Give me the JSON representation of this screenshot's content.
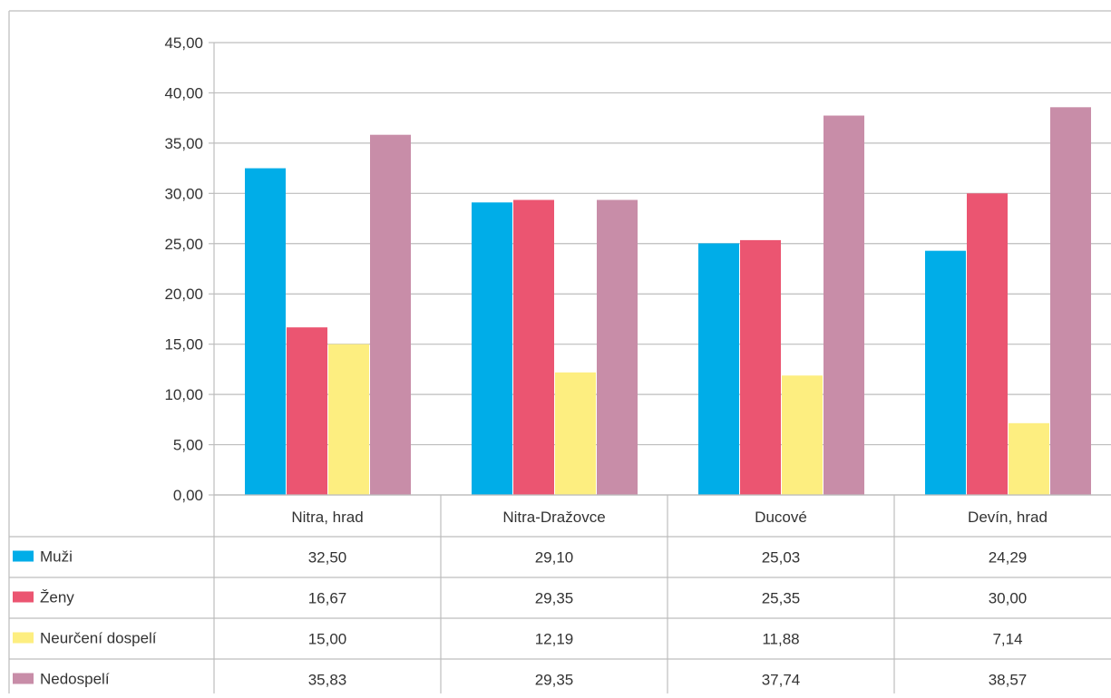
{
  "chart_data": {
    "type": "bar",
    "title": "",
    "xlabel": "",
    "ylabel": "",
    "categories": [
      "Nitra, hrad",
      "Nitra-Dražovce",
      "Ducové",
      "Devín, hrad"
    ],
    "series": [
      {
        "name": "Muži",
        "color": "#00ade8",
        "values": [
          32.5,
          29.1,
          25.03,
          24.29
        ],
        "labels": [
          "32,50",
          "29,10",
          "25,03",
          "24,29"
        ]
      },
      {
        "name": "Ženy",
        "color": "#eb5571",
        "values": [
          16.67,
          29.35,
          25.35,
          30.0
        ],
        "labels": [
          "16,67",
          "29,35",
          "25,35",
          "30,00"
        ]
      },
      {
        "name": "Neurčení dospelí",
        "color": "#fdee80",
        "values": [
          15.0,
          12.19,
          11.88,
          7.14
        ],
        "labels": [
          "15,00",
          "12,19",
          "11,88",
          "7,14"
        ]
      },
      {
        "name": "Nedospelí",
        "color": "#c88da8",
        "values": [
          35.83,
          29.35,
          37.74,
          38.57
        ],
        "labels": [
          "35,83",
          "29,35",
          "37,74",
          "38,57"
        ]
      }
    ],
    "ylim": [
      0,
      45
    ],
    "yticks": [
      0,
      5,
      10,
      15,
      20,
      25,
      30,
      35,
      40,
      45
    ],
    "ytick_labels": [
      "0,00",
      "5,00",
      "10,00",
      "15,00",
      "20,00",
      "25,00",
      "30,00",
      "35,00",
      "40,00",
      "45,00"
    ],
    "grid": true,
    "legend": "data-table"
  }
}
